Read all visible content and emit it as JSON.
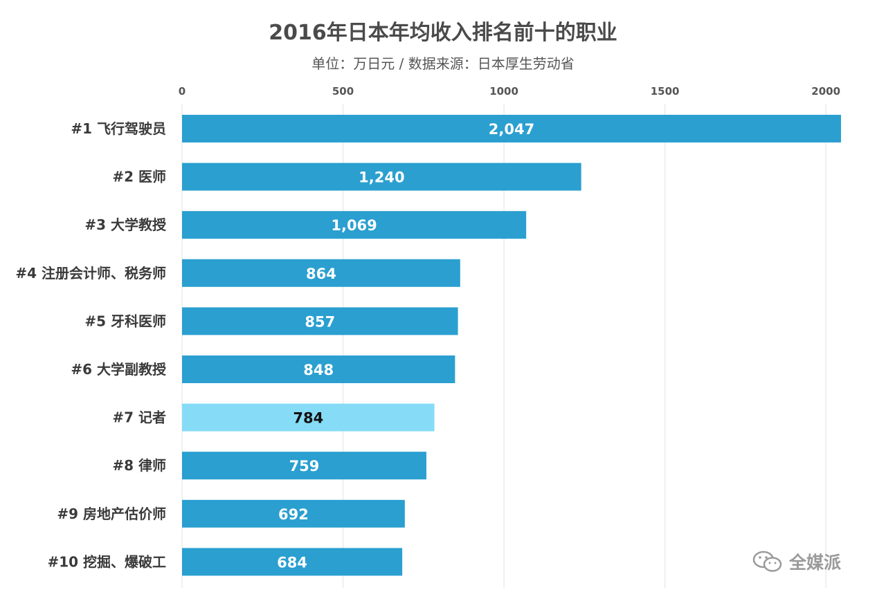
{
  "chart_data": {
    "type": "bar",
    "orientation": "horizontal",
    "title": "2016年日本年均收入排名前十的职业",
    "subtitle": "单位：万日元 / 数据来源：日本厚生劳动省",
    "categories": [
      "#1 飞行驾驶员",
      "#2 医师",
      "#3 大学教授",
      "#4 注册会计师、税务师",
      "#5 牙科医师",
      "#6 大学副教授",
      "#7 记者",
      "#8 律师",
      "#9 房地产估价师",
      "#10 挖掘、爆破工"
    ],
    "values": [
      2047,
      1240,
      1069,
      864,
      857,
      848,
      784,
      759,
      692,
      684
    ],
    "value_labels": [
      "2,047",
      "1,240",
      "1,069",
      "864",
      "857",
      "848",
      "784",
      "759",
      "692",
      "684"
    ],
    "highlight_index": 6,
    "xlim": [
      0,
      2050
    ],
    "xticks": [
      0,
      500,
      1000,
      1500,
      2000
    ],
    "axis_position": "top",
    "grid": true,
    "colors": {
      "bar": "#2a9fd0",
      "highlight_bar": "#86dcf6",
      "bar_label": "#ffffff",
      "highlight_label": "#111111",
      "grid": "#e6e6e6"
    }
  },
  "watermark": {
    "icon": "wechat-icon",
    "text": "全媒派"
  }
}
